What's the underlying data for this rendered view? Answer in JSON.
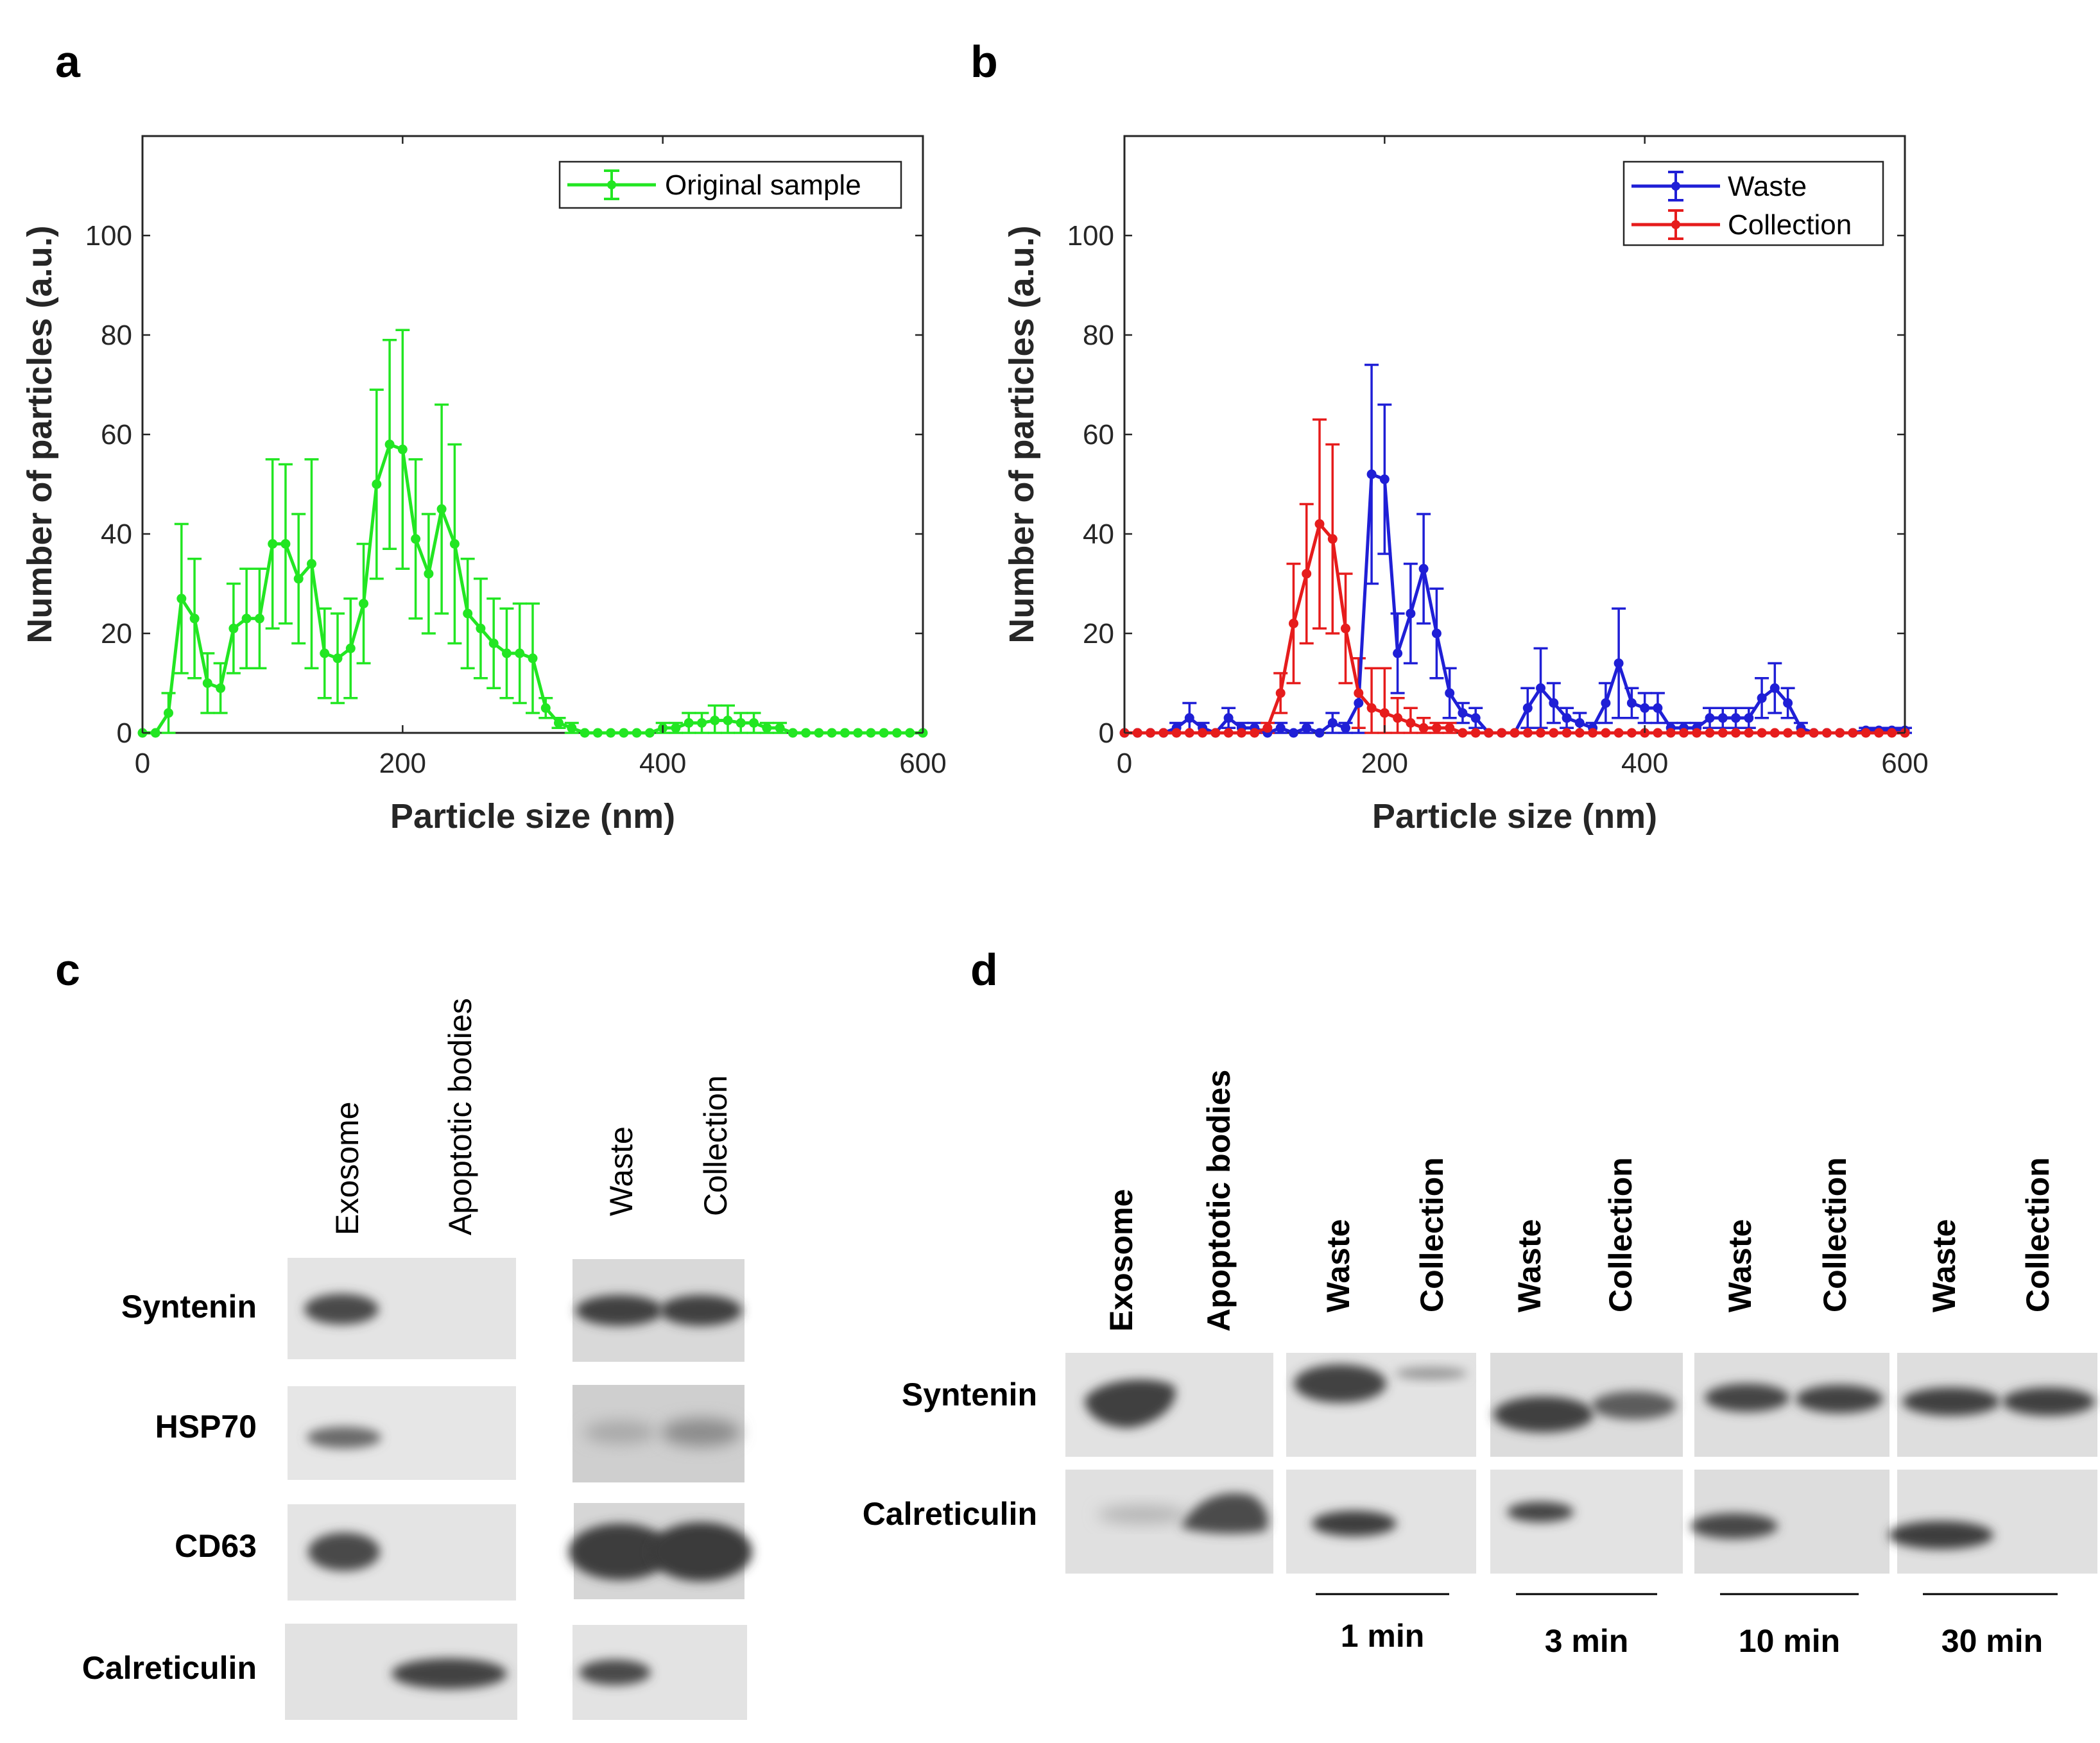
{
  "panels": {
    "a": {
      "letter": "a"
    },
    "b": {
      "letter": "b"
    },
    "c": {
      "letter": "c"
    },
    "d": {
      "letter": "d"
    }
  },
  "chart_data": [
    {
      "type": "line",
      "panel": "a",
      "title": "",
      "xlabel": "Particle size (nm)",
      "ylabel": "Number of particles (a.u.)",
      "xlim": [
        0,
        600
      ],
      "ylim": [
        0,
        120
      ],
      "xticks": [
        0,
        200,
        400,
        600
      ],
      "yticks": [
        0,
        20,
        40,
        60,
        80,
        100
      ],
      "legend_position": "top-right",
      "series": [
        {
          "name": "Original sample",
          "color": "#22e622",
          "x": [
            0,
            10,
            20,
            30,
            40,
            50,
            60,
            70,
            80,
            90,
            100,
            110,
            120,
            130,
            140,
            150,
            160,
            170,
            180,
            190,
            200,
            210,
            220,
            230,
            240,
            250,
            260,
            270,
            280,
            290,
            300,
            310,
            320,
            330,
            340,
            350,
            360,
            370,
            380,
            390,
            400,
            410,
            420,
            430,
            440,
            450,
            460,
            470,
            480,
            490,
            500,
            510,
            520,
            530,
            540,
            550,
            560,
            570,
            580,
            590,
            600
          ],
          "y": [
            0,
            0,
            4,
            27,
            23,
            10,
            9,
            21,
            23,
            23,
            38,
            38,
            31,
            34,
            16,
            15,
            17,
            26,
            50,
            58,
            57,
            39,
            32,
            45,
            38,
            24,
            21,
            18,
            16,
            16,
            15,
            5,
            2,
            1,
            0,
            0,
            0,
            0,
            0,
            0,
            1,
            1,
            2,
            2,
            2.5,
            2.5,
            2,
            2,
            1,
            1,
            0,
            0,
            0,
            0,
            0,
            0,
            0,
            0,
            0,
            0,
            0
          ],
          "err": [
            0,
            0,
            4,
            15,
            12,
            6,
            5,
            9,
            10,
            10,
            17,
            16,
            13,
            21,
            9,
            9,
            10,
            12,
            19,
            21,
            24,
            16,
            12,
            21,
            20,
            11,
            10,
            9,
            9,
            10,
            11,
            2,
            1,
            1,
            0,
            0,
            0,
            0,
            0,
            0,
            1,
            1,
            2,
            2,
            3,
            3,
            2,
            2,
            1,
            1,
            0,
            0,
            0,
            0,
            0,
            0,
            0,
            0,
            0,
            0,
            0
          ]
        }
      ]
    },
    {
      "type": "line",
      "panel": "b",
      "title": "",
      "xlabel": "Particle size (nm)",
      "ylabel": "Number of particles (a.u.)",
      "xlim": [
        0,
        600
      ],
      "ylim": [
        0,
        120
      ],
      "xticks": [
        0,
        200,
        400,
        600
      ],
      "yticks": [
        0,
        20,
        40,
        60,
        80,
        100
      ],
      "legend_position": "top-right",
      "series": [
        {
          "name": "Waste",
          "color": "#1f1fd6",
          "x": [
            0,
            10,
            20,
            30,
            40,
            50,
            60,
            70,
            80,
            90,
            100,
            110,
            120,
            130,
            140,
            150,
            160,
            170,
            180,
            190,
            200,
            210,
            220,
            230,
            240,
            250,
            260,
            270,
            280,
            290,
            300,
            310,
            320,
            330,
            340,
            350,
            360,
            370,
            380,
            390,
            400,
            410,
            420,
            430,
            440,
            450,
            460,
            470,
            480,
            490,
            500,
            510,
            520,
            530,
            540,
            550,
            560,
            570,
            580,
            590,
            600
          ],
          "y": [
            0,
            0,
            0,
            0,
            1,
            3,
            1,
            0,
            3,
            1,
            1,
            0,
            1,
            0,
            1,
            0,
            2,
            1,
            6,
            52,
            51,
            16,
            24,
            33,
            20,
            8,
            4,
            3,
            0,
            0,
            0,
            5,
            9,
            6,
            3,
            2,
            1,
            6,
            14,
            6,
            5,
            5,
            1,
            1,
            1,
            3,
            3,
            3,
            3,
            7,
            9,
            6,
            1,
            0,
            0,
            0,
            0,
            0.5,
            0.5,
            0.5,
            0.5
          ],
          "err": [
            0,
            0,
            0,
            0,
            1,
            3,
            1,
            0,
            2,
            1,
            1,
            0,
            1,
            0,
            1,
            0,
            2,
            1,
            9,
            22,
            15,
            8,
            10,
            11,
            9,
            5,
            2,
            2,
            0,
            0,
            0,
            4,
            8,
            4,
            2,
            2,
            1,
            4,
            11,
            3,
            3,
            3,
            1,
            1,
            1,
            2,
            2,
            2,
            2,
            4,
            5,
            3,
            1,
            0,
            0,
            0,
            0,
            0.5,
            0.5,
            0.5,
            0.5
          ]
        },
        {
          "name": "Collection",
          "color": "#e61c1c",
          "x": [
            0,
            10,
            20,
            30,
            40,
            50,
            60,
            70,
            80,
            90,
            100,
            110,
            120,
            130,
            140,
            150,
            160,
            170,
            180,
            190,
            200,
            210,
            220,
            230,
            240,
            250,
            260,
            270,
            280,
            290,
            300,
            310,
            320,
            330,
            340,
            350,
            360,
            370,
            380,
            390,
            400,
            410,
            420,
            430,
            440,
            450,
            460,
            470,
            480,
            490,
            500,
            510,
            520,
            530,
            540,
            550,
            560,
            570,
            580,
            590,
            600
          ],
          "y": [
            0,
            0,
            0,
            0,
            0,
            0,
            0,
            0,
            0,
            0,
            0,
            1,
            8,
            22,
            32,
            42,
            39,
            21,
            8,
            5,
            4,
            3,
            2,
            1,
            1,
            1,
            0,
            0,
            0,
            0,
            0,
            0,
            0,
            0,
            0,
            0,
            0,
            0,
            0,
            0,
            0,
            0,
            0,
            0,
            0,
            0,
            0,
            0,
            0,
            0,
            0,
            0,
            0,
            0,
            0,
            0,
            0,
            0,
            0,
            0,
            0
          ],
          "err": [
            0,
            0,
            0,
            0,
            0,
            0,
            0,
            0,
            0,
            0,
            0,
            1,
            4,
            12,
            14,
            21,
            19,
            11,
            7,
            8,
            9,
            4,
            3,
            2,
            1,
            1,
            0,
            0,
            0,
            0,
            0,
            0,
            0,
            0,
            0,
            0,
            0,
            0,
            0,
            0,
            0,
            0,
            0,
            0,
            0,
            0,
            0,
            0,
            0,
            0,
            0,
            0,
            0,
            0,
            0,
            0,
            0,
            0,
            0,
            0,
            0
          ]
        }
      ]
    }
  ],
  "blot_c": {
    "lanes_left": [
      "Exosome",
      "Apoptotic bodies"
    ],
    "lanes_right": [
      "Waste",
      "Collection"
    ],
    "proteins": [
      "Syntenin",
      "HSP70",
      "CD63",
      "Calreticulin"
    ]
  },
  "blot_d": {
    "lanes_left": [
      "Exosome",
      "Apoptotic bodies"
    ],
    "time_groups": [
      {
        "lanes": [
          "Waste",
          "Collection"
        ],
        "label": "1 min"
      },
      {
        "lanes": [
          "Waste",
          "Collection"
        ],
        "label": "3 min"
      },
      {
        "lanes": [
          "Waste",
          "Collection"
        ],
        "label": "10 min"
      },
      {
        "lanes": [
          "Waste",
          "Collection"
        ],
        "label": "30 min"
      }
    ],
    "proteins": [
      "Syntenin",
      "Calreticulin"
    ]
  }
}
